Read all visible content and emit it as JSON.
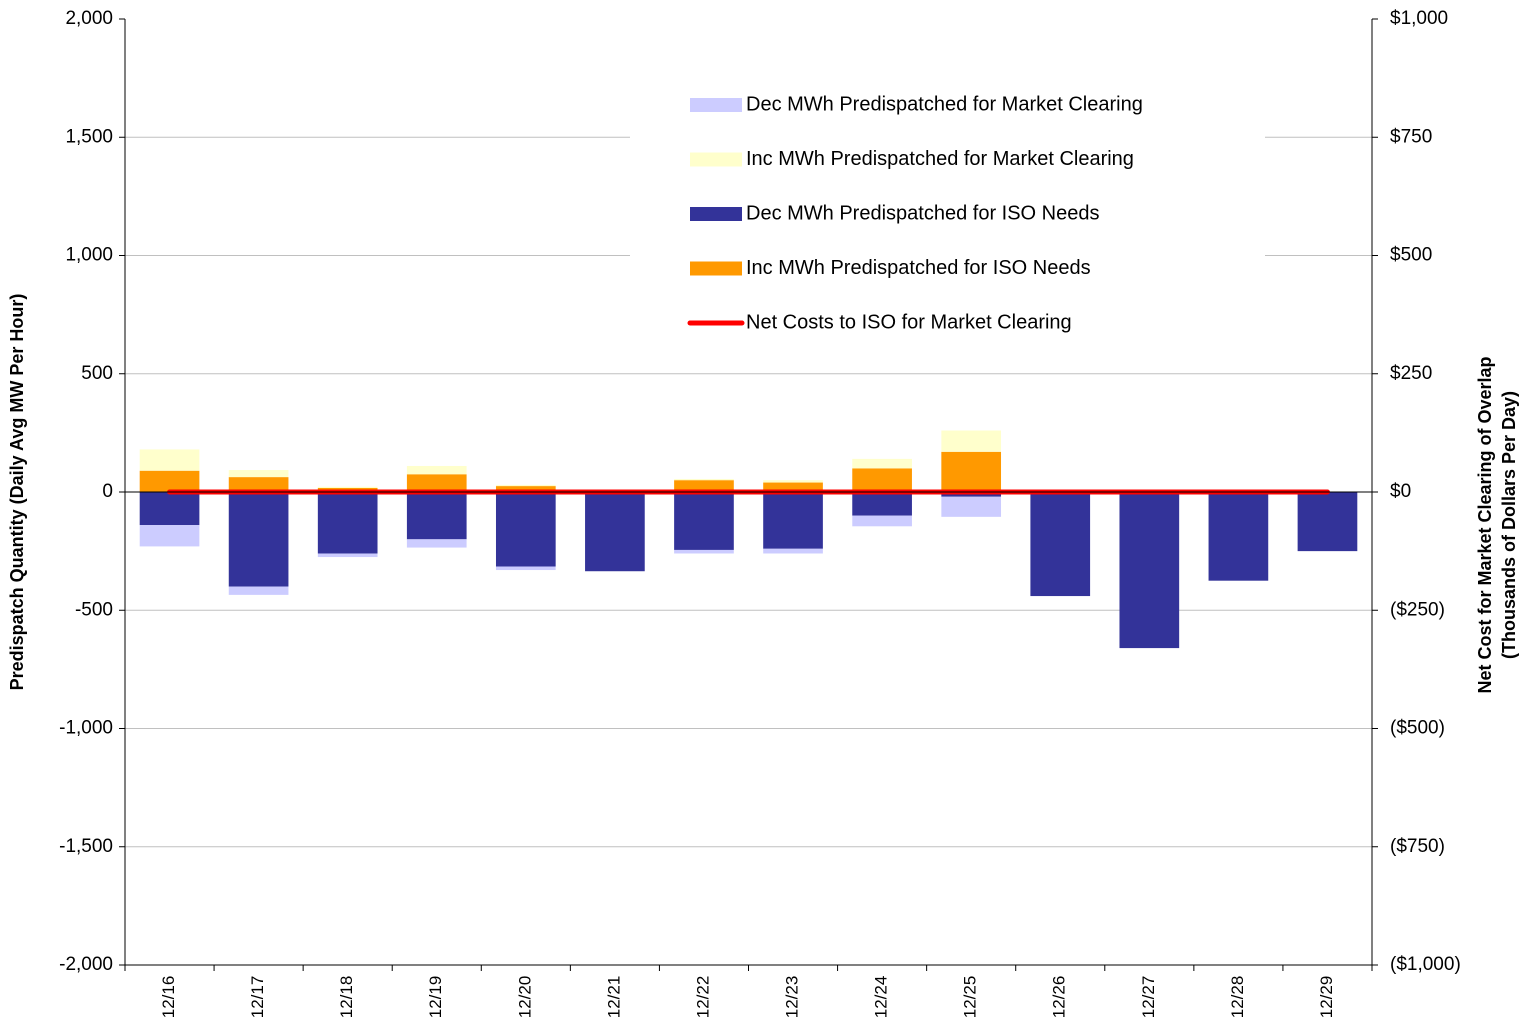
{
  "chart_data": {
    "type": "bar",
    "y_label": "Predispatch Quantity (Daily Avg MW Per Hour)",
    "y2_label": [
      "Net Cost for Market Clearing of Overlap",
      "(Thousands of Dollars Per Day)"
    ],
    "categories": [
      "12/16",
      "12/17",
      "12/18",
      "12/19",
      "12/20",
      "12/21",
      "12/22",
      "12/23",
      "12/24",
      "12/25",
      "12/26",
      "12/27",
      "12/28",
      "12/29"
    ],
    "series": [
      {
        "name": "Dec MWh Predispatched for Market Clearing",
        "color": "#ccccff",
        "values": [
          -90,
          -35,
          -15,
          -35,
          -15,
          0,
          -15,
          -20,
          -45,
          -85,
          0,
          0,
          0,
          0
        ]
      },
      {
        "name": "Inc MWh Predispatched for Market Clearing",
        "color": "#ffffcc",
        "values": [
          90,
          30,
          5,
          35,
          5,
          0,
          5,
          10,
          40,
          90,
          0,
          0,
          0,
          0
        ]
      },
      {
        "name": "Dec MWh Predispatched for ISO Needs",
        "color": "#333399",
        "values": [
          -140,
          -400,
          -260,
          -200,
          -315,
          -335,
          -245,
          -240,
          -100,
          -20,
          -440,
          -660,
          -375,
          -250
        ]
      },
      {
        "name": "Inc MWh Predispatched for ISO Needs",
        "color": "#ff9900",
        "values": [
          90,
          63,
          17,
          75,
          25,
          0,
          50,
          40,
          100,
          170,
          0,
          0,
          0,
          0
        ]
      },
      {
        "name": "Net Costs to ISO for Market Clearing",
        "color": "#ff0000",
        "type": "line",
        "axis": "y2",
        "values": [
          0,
          0,
          0,
          0,
          0,
          0,
          0,
          0,
          0,
          0,
          0,
          0,
          0,
          0
        ]
      }
    ],
    "ylim": [
      -2000,
      2000
    ],
    "yticks": [
      {
        "value": -2000,
        "label": "-2,000"
      },
      {
        "value": -1500,
        "label": "-1,500"
      },
      {
        "value": -1000,
        "label": "-1,000"
      },
      -500,
      0,
      500,
      {
        "value": 1000,
        "label": "1,000"
      },
      {
        "value": 1500,
        "label": "1,500"
      },
      {
        "value": 2000,
        "label": "2,000"
      }
    ],
    "y2lim": [
      -1000,
      1000
    ],
    "y2ticks": [
      {
        "value": -1000,
        "label": "($1,000)"
      },
      {
        "value": -750,
        "label": "($750)"
      },
      {
        "value": -500,
        "label": "($500)"
      },
      {
        "value": -250,
        "label": "($250)"
      },
      {
        "value": 0,
        "label": "$0"
      },
      {
        "value": 250,
        "label": "$250"
      },
      {
        "value": 500,
        "label": "$500"
      },
      {
        "value": 750,
        "label": "$750"
      },
      {
        "value": 1000,
        "label": "$1,000"
      }
    ],
    "grid": true,
    "legend": "upper right"
  }
}
